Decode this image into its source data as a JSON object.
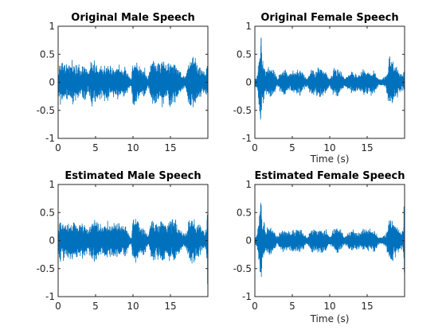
{
  "chart_data": [
    {
      "type": "line",
      "title": "Original Male Speech",
      "xlabel": "",
      "ylabel": "",
      "xlim": [
        0,
        20
      ],
      "ylim": [
        -1,
        1
      ],
      "xticks": [
        "0",
        "5",
        "10",
        "15"
      ],
      "yticks": [
        "1",
        "0.5",
        "0",
        "-0.5",
        "-1"
      ],
      "grid": false,
      "legend": "none",
      "color": "#0072BD",
      "envelope": {
        "t": [
          0,
          0.2,
          0.5,
          1.0,
          1.5,
          2.0,
          2.5,
          3.0,
          3.5,
          4.0,
          4.5,
          5.0,
          5.5,
          6.0,
          6.5,
          7.0,
          7.5,
          8.0,
          8.5,
          9.0,
          9.5,
          9.8,
          10.0,
          10.2,
          10.5,
          11.0,
          11.5,
          12.0,
          12.5,
          13.0,
          13.5,
          14.0,
          14.5,
          15.0,
          15.5,
          16.0,
          16.5,
          17.0,
          17.5,
          18.0,
          18.5,
          19.0,
          19.5,
          20.0
        ],
        "amp": [
          0.15,
          0.35,
          0.45,
          0.3,
          0.35,
          0.4,
          0.3,
          0.3,
          0.35,
          0.2,
          0.45,
          0.4,
          0.3,
          0.3,
          0.35,
          0.3,
          0.3,
          0.35,
          0.25,
          0.3,
          0.1,
          0.05,
          0.55,
          0.5,
          0.4,
          0.25,
          0.3,
          0.05,
          0.45,
          0.4,
          0.35,
          0.5,
          0.3,
          0.45,
          0.4,
          0.3,
          0.15,
          0.1,
          0.45,
          0.5,
          0.4,
          0.3,
          0.2,
          0.3
        ]
      }
    },
    {
      "type": "line",
      "title": "Original Female Speech",
      "xlabel": "Time (s)",
      "ylabel": "",
      "xlim": [
        0,
        20
      ],
      "ylim": [
        -1,
        1
      ],
      "xticks": [
        "0",
        "5",
        "10",
        "15"
      ],
      "yticks": [
        "1",
        "0.5",
        "0",
        "-0.5",
        "-1"
      ],
      "grid": false,
      "legend": "none",
      "color": "#0072BD",
      "envelope": {
        "t": [
          0,
          0.3,
          0.6,
          0.8,
          1.0,
          1.3,
          1.5,
          2.0,
          2.5,
          3.0,
          3.5,
          4.0,
          4.5,
          5.0,
          5.5,
          6.0,
          6.5,
          7.0,
          7.5,
          8.0,
          8.5,
          9.0,
          9.5,
          10.0,
          10.5,
          11.0,
          11.5,
          12.0,
          12.5,
          13.0,
          13.5,
          14.0,
          14.5,
          15.0,
          15.5,
          16.0,
          16.5,
          17.0,
          17.5,
          18.0,
          18.5,
          19.0,
          19.5,
          20.0
        ],
        "amp": [
          0.05,
          0.1,
          0.6,
          0.95,
          0.45,
          0.3,
          0.2,
          0.3,
          0.25,
          0.05,
          0.2,
          0.25,
          0.15,
          0.2,
          0.2,
          0.25,
          0.15,
          0.05,
          0.25,
          0.2,
          0.3,
          0.25,
          0.2,
          0.05,
          0.25,
          0.3,
          0.2,
          0.05,
          0.15,
          0.2,
          0.15,
          0.15,
          0.25,
          0.2,
          0.25,
          0.2,
          0.05,
          0.05,
          0.1,
          0.55,
          0.4,
          0.3,
          0.15,
          0.2
        ]
      }
    },
    {
      "type": "line",
      "title": "Estimated Male Speech",
      "xlabel": "",
      "ylabel": "",
      "xlim": [
        0,
        20
      ],
      "ylim": [
        -1,
        1
      ],
      "xticks": [
        "0",
        "5",
        "10",
        "15"
      ],
      "yticks": [
        "1",
        "0.5",
        "0",
        "-0.5",
        "-1"
      ],
      "grid": false,
      "legend": "none",
      "color": "#0072BD",
      "envelope": {
        "t": [
          0,
          0.2,
          0.5,
          1.0,
          1.5,
          2.0,
          2.5,
          3.0,
          3.5,
          4.0,
          4.5,
          5.0,
          5.5,
          6.0,
          6.5,
          7.0,
          7.5,
          8.0,
          8.5,
          9.0,
          9.5,
          9.8,
          10.0,
          10.2,
          10.5,
          11.0,
          11.5,
          12.0,
          12.5,
          13.0,
          13.5,
          14.0,
          14.5,
          15.0,
          15.5,
          16.0,
          16.5,
          17.0,
          17.5,
          18.0,
          18.5,
          19.0,
          19.5,
          19.8,
          20.0
        ],
        "amp": [
          0.15,
          0.35,
          0.4,
          0.3,
          0.35,
          0.4,
          0.3,
          0.3,
          0.35,
          0.2,
          0.4,
          0.4,
          0.3,
          0.3,
          0.35,
          0.3,
          0.3,
          0.35,
          0.25,
          0.3,
          0.1,
          0.05,
          0.5,
          0.45,
          0.4,
          0.25,
          0.3,
          0.05,
          0.4,
          0.4,
          0.35,
          0.45,
          0.3,
          0.4,
          0.4,
          0.3,
          0.15,
          0.1,
          0.4,
          0.45,
          0.35,
          0.3,
          0.15,
          0.2,
          1.0
        ]
      }
    },
    {
      "type": "line",
      "title": "Estimated Female Speech",
      "xlabel": "Time (s)",
      "ylabel": "",
      "xlim": [
        0,
        20
      ],
      "ylim": [
        -1,
        1
      ],
      "xticks": [
        "0",
        "5",
        "10",
        "15"
      ],
      "yticks": [
        "1",
        "0.5",
        "0",
        "-0.5",
        "-1"
      ],
      "grid": false,
      "legend": "none",
      "color": "#0072BD",
      "envelope": {
        "t": [
          0,
          0.3,
          0.6,
          0.8,
          1.0,
          1.3,
          1.5,
          2.0,
          2.5,
          3.0,
          3.5,
          4.0,
          4.5,
          5.0,
          5.5,
          6.0,
          6.5,
          7.0,
          7.5,
          8.0,
          8.5,
          9.0,
          9.5,
          10.0,
          10.5,
          11.0,
          11.5,
          12.0,
          12.5,
          13.0,
          13.5,
          14.0,
          14.5,
          15.0,
          15.5,
          16.0,
          16.5,
          17.0,
          17.5,
          18.0,
          18.5,
          19.0,
          19.5,
          19.8,
          20.0
        ],
        "amp": [
          0.05,
          0.1,
          0.5,
          0.8,
          0.4,
          0.3,
          0.2,
          0.3,
          0.2,
          0.05,
          0.2,
          0.2,
          0.15,
          0.2,
          0.2,
          0.2,
          0.15,
          0.05,
          0.2,
          0.2,
          0.25,
          0.2,
          0.2,
          0.05,
          0.2,
          0.25,
          0.2,
          0.05,
          0.15,
          0.2,
          0.15,
          0.15,
          0.2,
          0.2,
          0.2,
          0.2,
          0.05,
          0.05,
          0.1,
          0.5,
          0.35,
          0.25,
          0.15,
          0.2,
          1.0
        ]
      }
    }
  ]
}
